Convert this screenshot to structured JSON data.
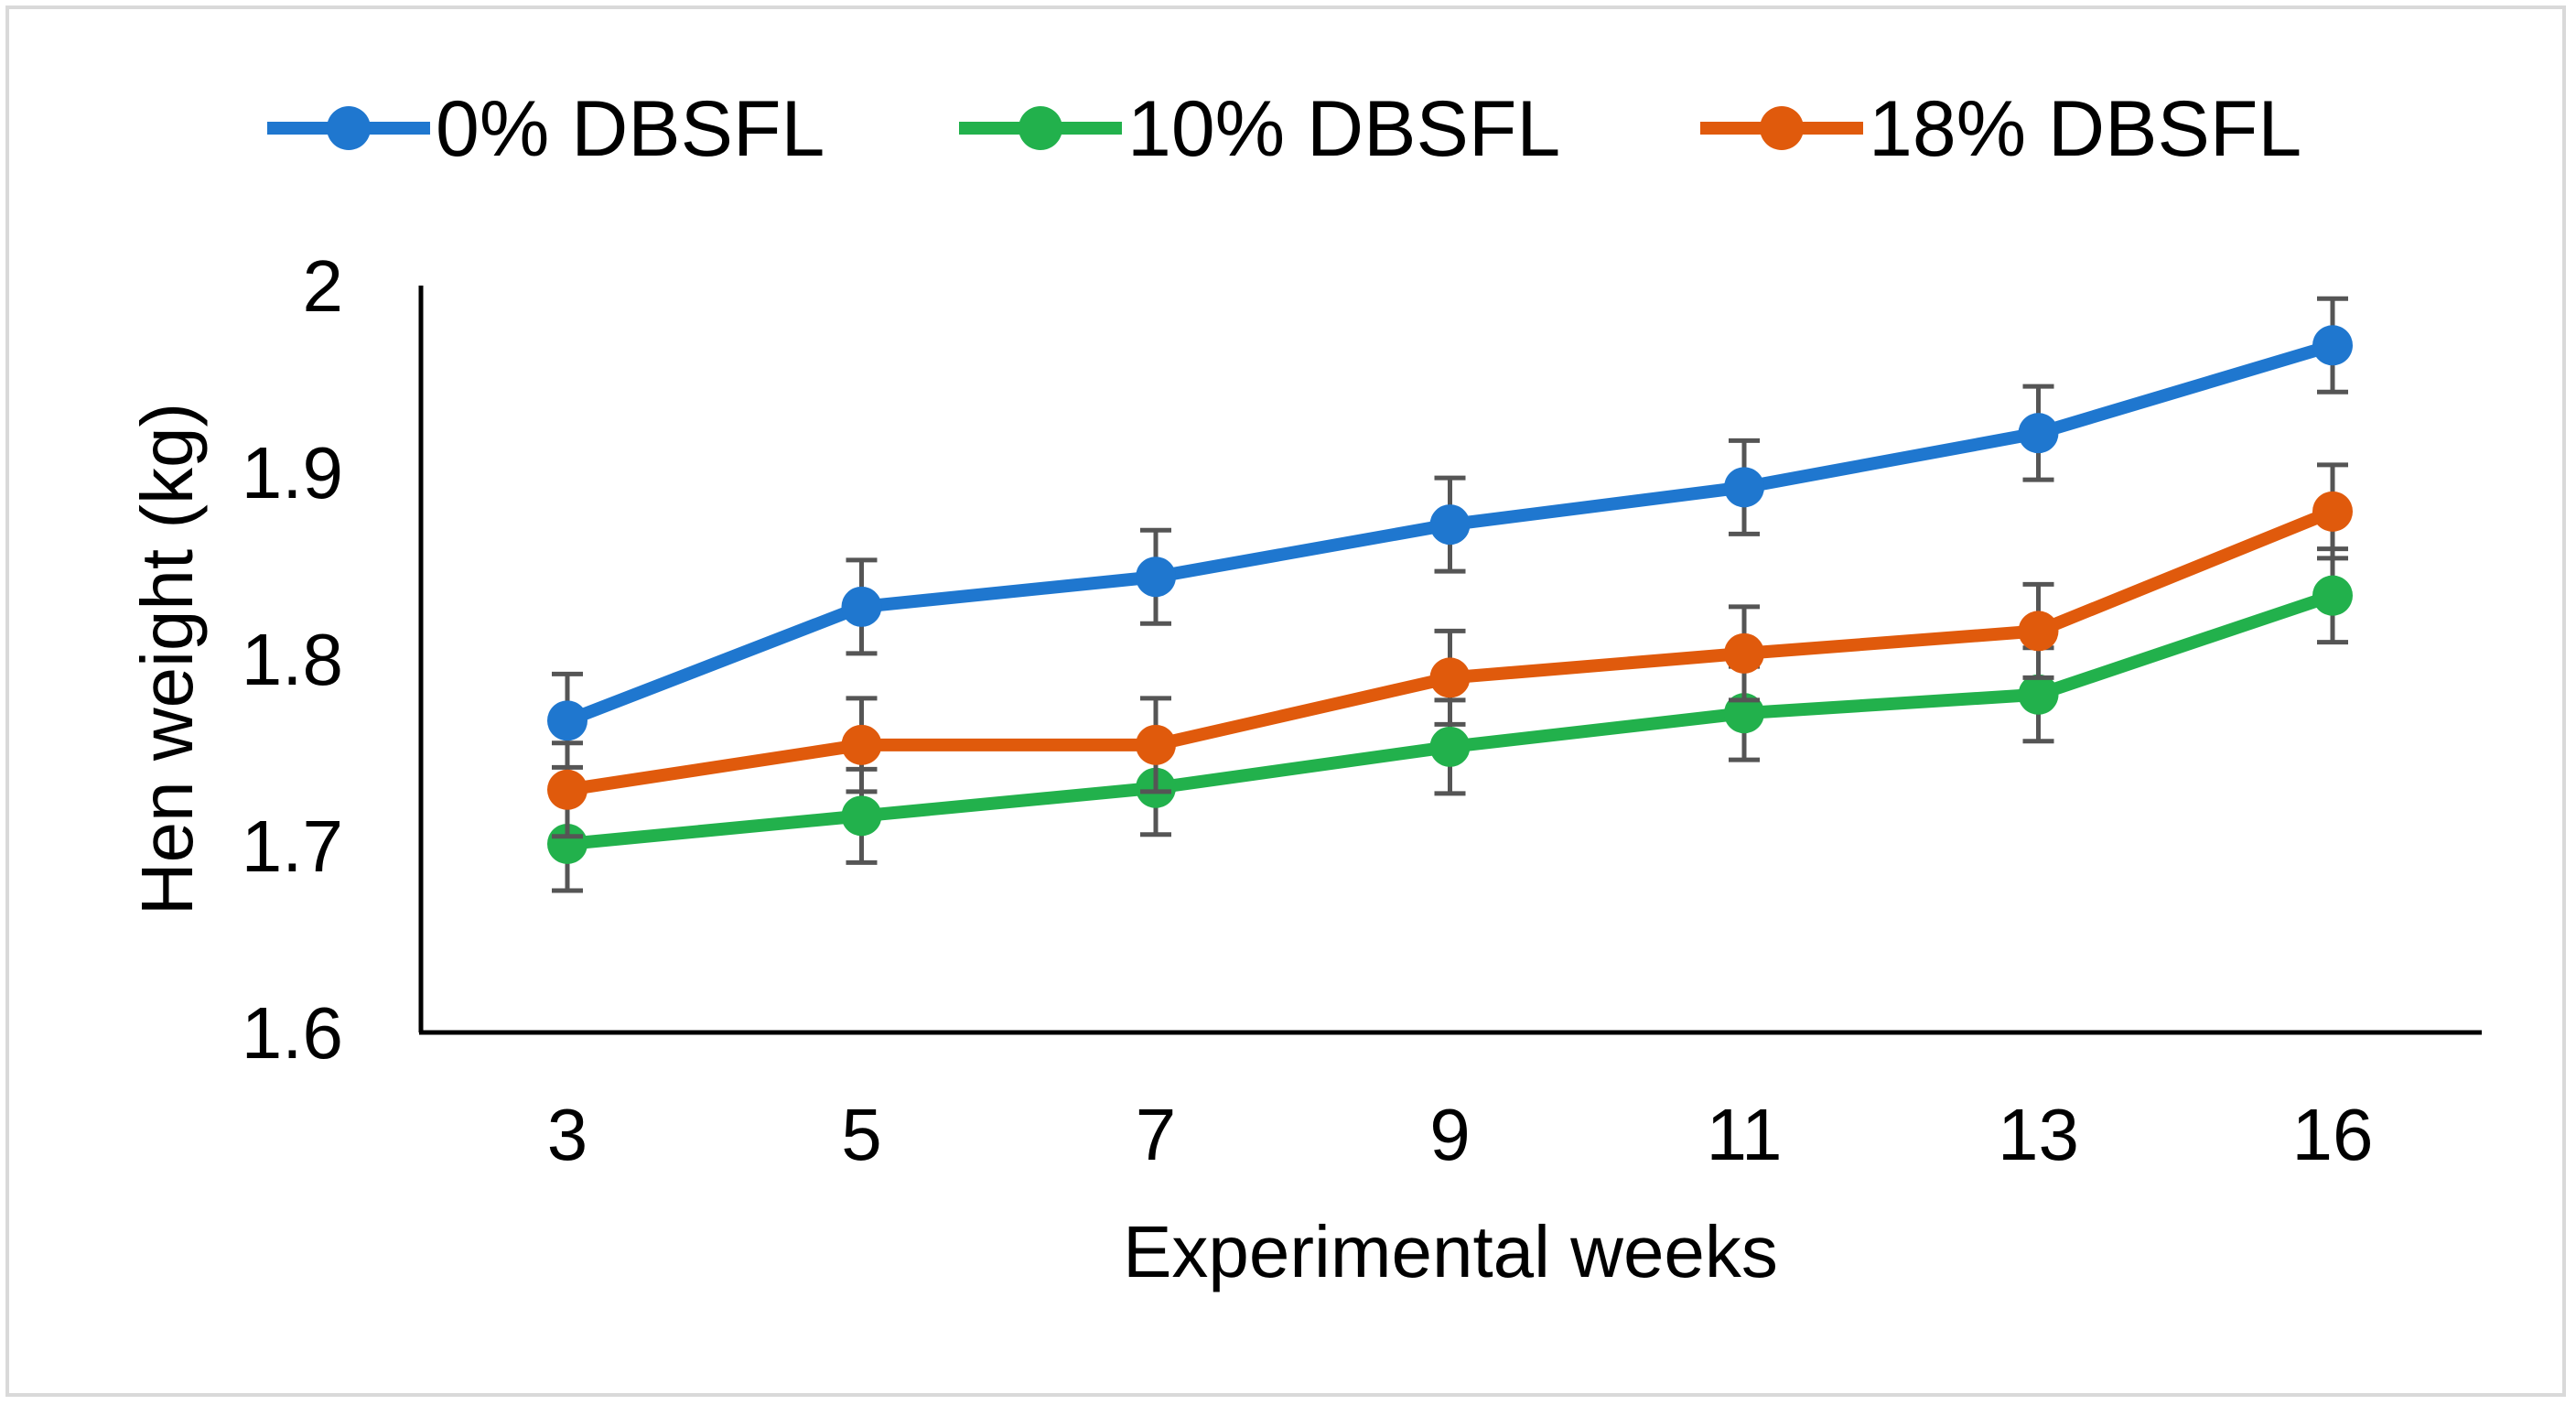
{
  "chart_data": {
    "type": "line",
    "title": "",
    "xlabel": "Experimental weeks",
    "ylabel": "Hen weight (kg)",
    "categories": [
      "3",
      "5",
      "7",
      "9",
      "11",
      "13",
      "16"
    ],
    "ylim": [
      1.6,
      2.0
    ],
    "yticks": [
      "1.6",
      "1.7",
      "1.8",
      "1.9",
      "2"
    ],
    "error_bar": 0.025,
    "legend_position": "top",
    "series": [
      {
        "name": "0% DBSFL",
        "color": "#1f77cf",
        "values": [
          1.767,
          1.828,
          1.844,
          1.872,
          1.892,
          1.921,
          1.968
        ]
      },
      {
        "name": "10% DBSFL",
        "color": "#22b14c",
        "values": [
          1.701,
          1.716,
          1.731,
          1.753,
          1.771,
          1.781,
          1.834
        ]
      },
      {
        "name": "18% DBSFL",
        "color": "#e05a0c",
        "values": [
          1.73,
          1.754,
          1.754,
          1.79,
          1.803,
          1.815,
          1.879
        ]
      }
    ]
  }
}
